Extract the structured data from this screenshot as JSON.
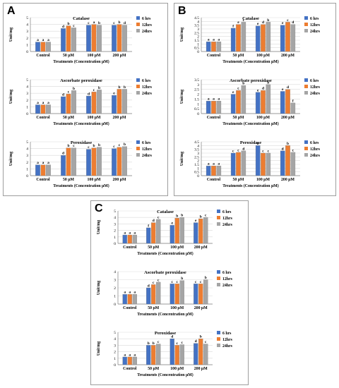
{
  "colors": {
    "6 hrs": "#4472C4",
    "12hrs": "#ED7D31",
    "24hrs": "#A5A5A5",
    "grid": "#d9d9d9"
  },
  "panels": [
    {
      "letter": "A",
      "name": "A"
    },
    {
      "letter": "B",
      "name": "B"
    },
    {
      "letter": "C",
      "name": "C"
    }
  ],
  "chart_data": [
    {
      "panel": "A",
      "type": "bar",
      "title": "Catalase",
      "xlabel": "Treatments (Concentration µM)",
      "ylabel": "Unit/mg",
      "categories": [
        "Control",
        "50 µM",
        "100 µM",
        "200 µM"
      ],
      "ylim": [
        0,
        5
      ],
      "yticks": [
        0,
        1,
        2,
        3,
        4,
        5
      ],
      "legend": "top-right",
      "series": [
        {
          "name": "6 hrs",
          "values": [
            1.4,
            3.4,
            3.9,
            3.9
          ],
          "labels": [
            "a",
            "d",
            "c",
            "c"
          ]
        },
        {
          "name": "12hrs",
          "values": [
            1.4,
            3.8,
            4.0,
            4.0
          ],
          "labels": [
            "a",
            "b",
            "a",
            "b"
          ]
        },
        {
          "name": "24hrs",
          "values": [
            1.4,
            3.5,
            3.9,
            3.9
          ],
          "labels": [
            "a",
            "c",
            "b",
            "d"
          ]
        }
      ]
    },
    {
      "panel": "A",
      "type": "bar",
      "title": "Ascorbate peroxidase",
      "xlabel": "Treatments (Concentration µM)",
      "ylabel": "Unit/mg",
      "categories": [
        "Control",
        "50 µM",
        "100 µM",
        "200 µM"
      ],
      "ylim": [
        0,
        5
      ],
      "yticks": [
        0,
        1,
        2,
        3,
        4,
        5
      ],
      "legend": "top-right",
      "series": [
        {
          "name": "6 hrs",
          "values": [
            1.3,
            2.5,
            2.6,
            2.7
          ],
          "labels": [
            "a",
            "d",
            "d",
            "e"
          ]
        },
        {
          "name": "12hrs",
          "values": [
            1.3,
            2.9,
            3.2,
            3.6
          ],
          "labels": [
            "a",
            "c",
            "c",
            "b"
          ]
        },
        {
          "name": "24hrs",
          "values": [
            1.3,
            3.4,
            3.5,
            3.6
          ],
          "labels": [
            "a",
            "b",
            "b",
            "b"
          ]
        }
      ]
    },
    {
      "panel": "A",
      "type": "bar",
      "title": "Peroxidase",
      "xlabel": "Treatments (Concentration µM)",
      "ylabel": "Unit/mg",
      "categories": [
        "Control",
        "50 µM",
        "100 µM",
        "200 µM"
      ],
      "ylim": [
        0,
        5
      ],
      "yticks": [
        0,
        1,
        2,
        3,
        4,
        5
      ],
      "legend": "top-right",
      "series": [
        {
          "name": "6 hrs",
          "values": [
            1.6,
            3.0,
            3.9,
            4.0
          ],
          "labels": [
            "a",
            "d",
            "c",
            "c"
          ]
        },
        {
          "name": "12hrs",
          "values": [
            1.6,
            4.1,
            4.1,
            4.2
          ],
          "labels": [
            "a",
            "b",
            "b",
            "c"
          ]
        },
        {
          "name": "24hrs",
          "values": [
            1.6,
            4.1,
            4.2,
            4.3
          ],
          "labels": [
            "a",
            "c",
            "b",
            "b"
          ]
        }
      ]
    },
    {
      "panel": "B",
      "type": "bar",
      "title": "Catalase",
      "xlabel": "Treatments (Concentration µM)",
      "ylabel": "Unit/mg",
      "categories": [
        "Control",
        "50 µM",
        "100 µM",
        "200 µM"
      ],
      "ylim": [
        0,
        4.5
      ],
      "yticks": [
        0,
        0.5,
        1,
        1.5,
        2,
        2.5,
        3,
        3.5,
        4,
        4.5
      ],
      "legend": "top-right",
      "series": [
        {
          "name": "6 hrs",
          "values": [
            1.3,
            3.1,
            3.4,
            3.5
          ],
          "labels": [
            "a",
            "f",
            "e",
            "e"
          ]
        },
        {
          "name": "12hrs",
          "values": [
            1.3,
            3.6,
            3.6,
            3.9
          ],
          "labels": [
            "a",
            "e",
            "d",
            "c"
          ]
        },
        {
          "name": "24hrs",
          "values": [
            1.3,
            3.9,
            3.9,
            3.6
          ],
          "labels": [
            "a",
            "c",
            "b",
            "d"
          ]
        }
      ]
    },
    {
      "panel": "B",
      "type": "bar",
      "title": "Ascorbate peroxidase",
      "xlabel": "Treatments (Concentration µM)",
      "ylabel": "Unit/mg",
      "categories": [
        "Control",
        "50 µM",
        "100 µM",
        "200 µM"
      ],
      "ylim": [
        0,
        3.5
      ],
      "yticks": [
        0,
        0.5,
        1,
        1.5,
        2,
        2.5,
        3,
        3.5
      ],
      "legend": "top-right",
      "series": [
        {
          "name": "6 hrs",
          "values": [
            1.3,
            2.0,
            2.2,
            2.3
          ],
          "labels": [
            "a",
            "e",
            "e",
            "e"
          ]
        },
        {
          "name": "12hrs",
          "values": [
            1.3,
            2.4,
            2.4,
            2.5
          ],
          "labels": [
            "a",
            "c",
            "d",
            "d"
          ]
        },
        {
          "name": "24hrs",
          "values": [
            1.3,
            2.9,
            3.0,
            1.1
          ],
          "labels": [
            "a",
            "b",
            "b",
            "f"
          ]
        }
      ]
    },
    {
      "panel": "B",
      "type": "bar",
      "title": "Peroxidase",
      "xlabel": "Treatments (Concentration µM)",
      "ylabel": "Unit/mg",
      "categories": [
        "Control",
        "50 µM",
        "100 µM",
        "200 µM"
      ],
      "ylim": [
        0,
        4.5
      ],
      "yticks": [
        0,
        0.5,
        1,
        1.5,
        2,
        2.5,
        3,
        3.5,
        4,
        4.5
      ],
      "legend": "top-right",
      "series": [
        {
          "name": "6 hrs",
          "values": [
            1.3,
            3.0,
            4.0,
            3.3
          ],
          "labels": [
            "a",
            "c",
            "b",
            "d"
          ]
        },
        {
          "name": "12hrs",
          "values": [
            1.3,
            3.1,
            3.0,
            4.0
          ],
          "labels": [
            "a",
            "c",
            "c",
            "b"
          ]
        },
        {
          "name": "24hrs",
          "values": [
            1.3,
            3.3,
            3.0,
            3.1
          ],
          "labels": [
            "a",
            "d",
            "c",
            "c"
          ]
        }
      ]
    },
    {
      "panel": "C",
      "type": "bar",
      "title": "Catalase",
      "xlabel": "Treatments (Concentration µM)",
      "ylabel": "Unit/mg",
      "categories": [
        "Control",
        "50 µM",
        "100 µM",
        "200 µM"
      ],
      "ylim": [
        0,
        5
      ],
      "yticks": [
        0,
        1,
        2,
        3,
        4,
        5
      ],
      "legend": "top-right",
      "series": [
        {
          "name": "6 hrs",
          "values": [
            1.3,
            2.4,
            2.8,
            3.2
          ],
          "labels": [
            "a",
            "f",
            "e",
            "e"
          ]
        },
        {
          "name": "12hrs",
          "values": [
            1.3,
            3.2,
            3.9,
            3.8
          ],
          "labels": [
            "a",
            "d",
            "b",
            "b"
          ]
        },
        {
          "name": "24hrs",
          "values": [
            1.3,
            3.7,
            4.0,
            4.0
          ],
          "labels": [
            "a",
            "c",
            "b",
            "c"
          ]
        }
      ]
    },
    {
      "panel": "C",
      "type": "bar",
      "title": "Ascorbate peroxidase",
      "xlabel": "Treatments (Concentration µM)",
      "ylabel": "Unit/mg",
      "categories": [
        "Control",
        "50 µM",
        "100 µM",
        "200 µM"
      ],
      "ylim": [
        0,
        4
      ],
      "yticks": [
        0,
        1,
        2,
        3,
        4
      ],
      "legend": "top-right",
      "series": [
        {
          "name": "6 hrs",
          "values": [
            1.2,
            2.0,
            2.5,
            2.5
          ],
          "labels": [
            "a",
            "d",
            "c",
            "c"
          ]
        },
        {
          "name": "12hrs",
          "values": [
            1.2,
            2.4,
            2.5,
            2.5
          ],
          "labels": [
            "a",
            "c",
            "c",
            "c"
          ]
        },
        {
          "name": "24hrs",
          "values": [
            1.2,
            2.7,
            2.9,
            3.0
          ],
          "labels": [
            "a",
            "c",
            "b",
            "b"
          ]
        }
      ]
    },
    {
      "panel": "C",
      "type": "bar",
      "title": "Peroxidase",
      "xlabel": "Treatments (Concentration µM)",
      "ylabel": "Unit/mg",
      "categories": [
        "Control",
        "50 µM",
        "100 µM",
        "200 µM"
      ],
      "ylim": [
        0,
        5
      ],
      "yticks": [
        0,
        1,
        2,
        3,
        4,
        5
      ],
      "legend": "top-right",
      "series": [
        {
          "name": "6 hrs",
          "values": [
            1.2,
            3.0,
            4.0,
            3.3
          ],
          "labels": [
            "a",
            "b",
            "d",
            "d"
          ]
        },
        {
          "name": "12hrs",
          "values": [
            1.2,
            3.0,
            3.0,
            4.0
          ],
          "labels": [
            "a",
            "b",
            "c",
            "b"
          ]
        },
        {
          "name": "24hrs",
          "values": [
            1.2,
            3.2,
            3.1,
            3.2
          ],
          "labels": [
            "a",
            "c",
            "c",
            "c"
          ]
        }
      ]
    }
  ]
}
